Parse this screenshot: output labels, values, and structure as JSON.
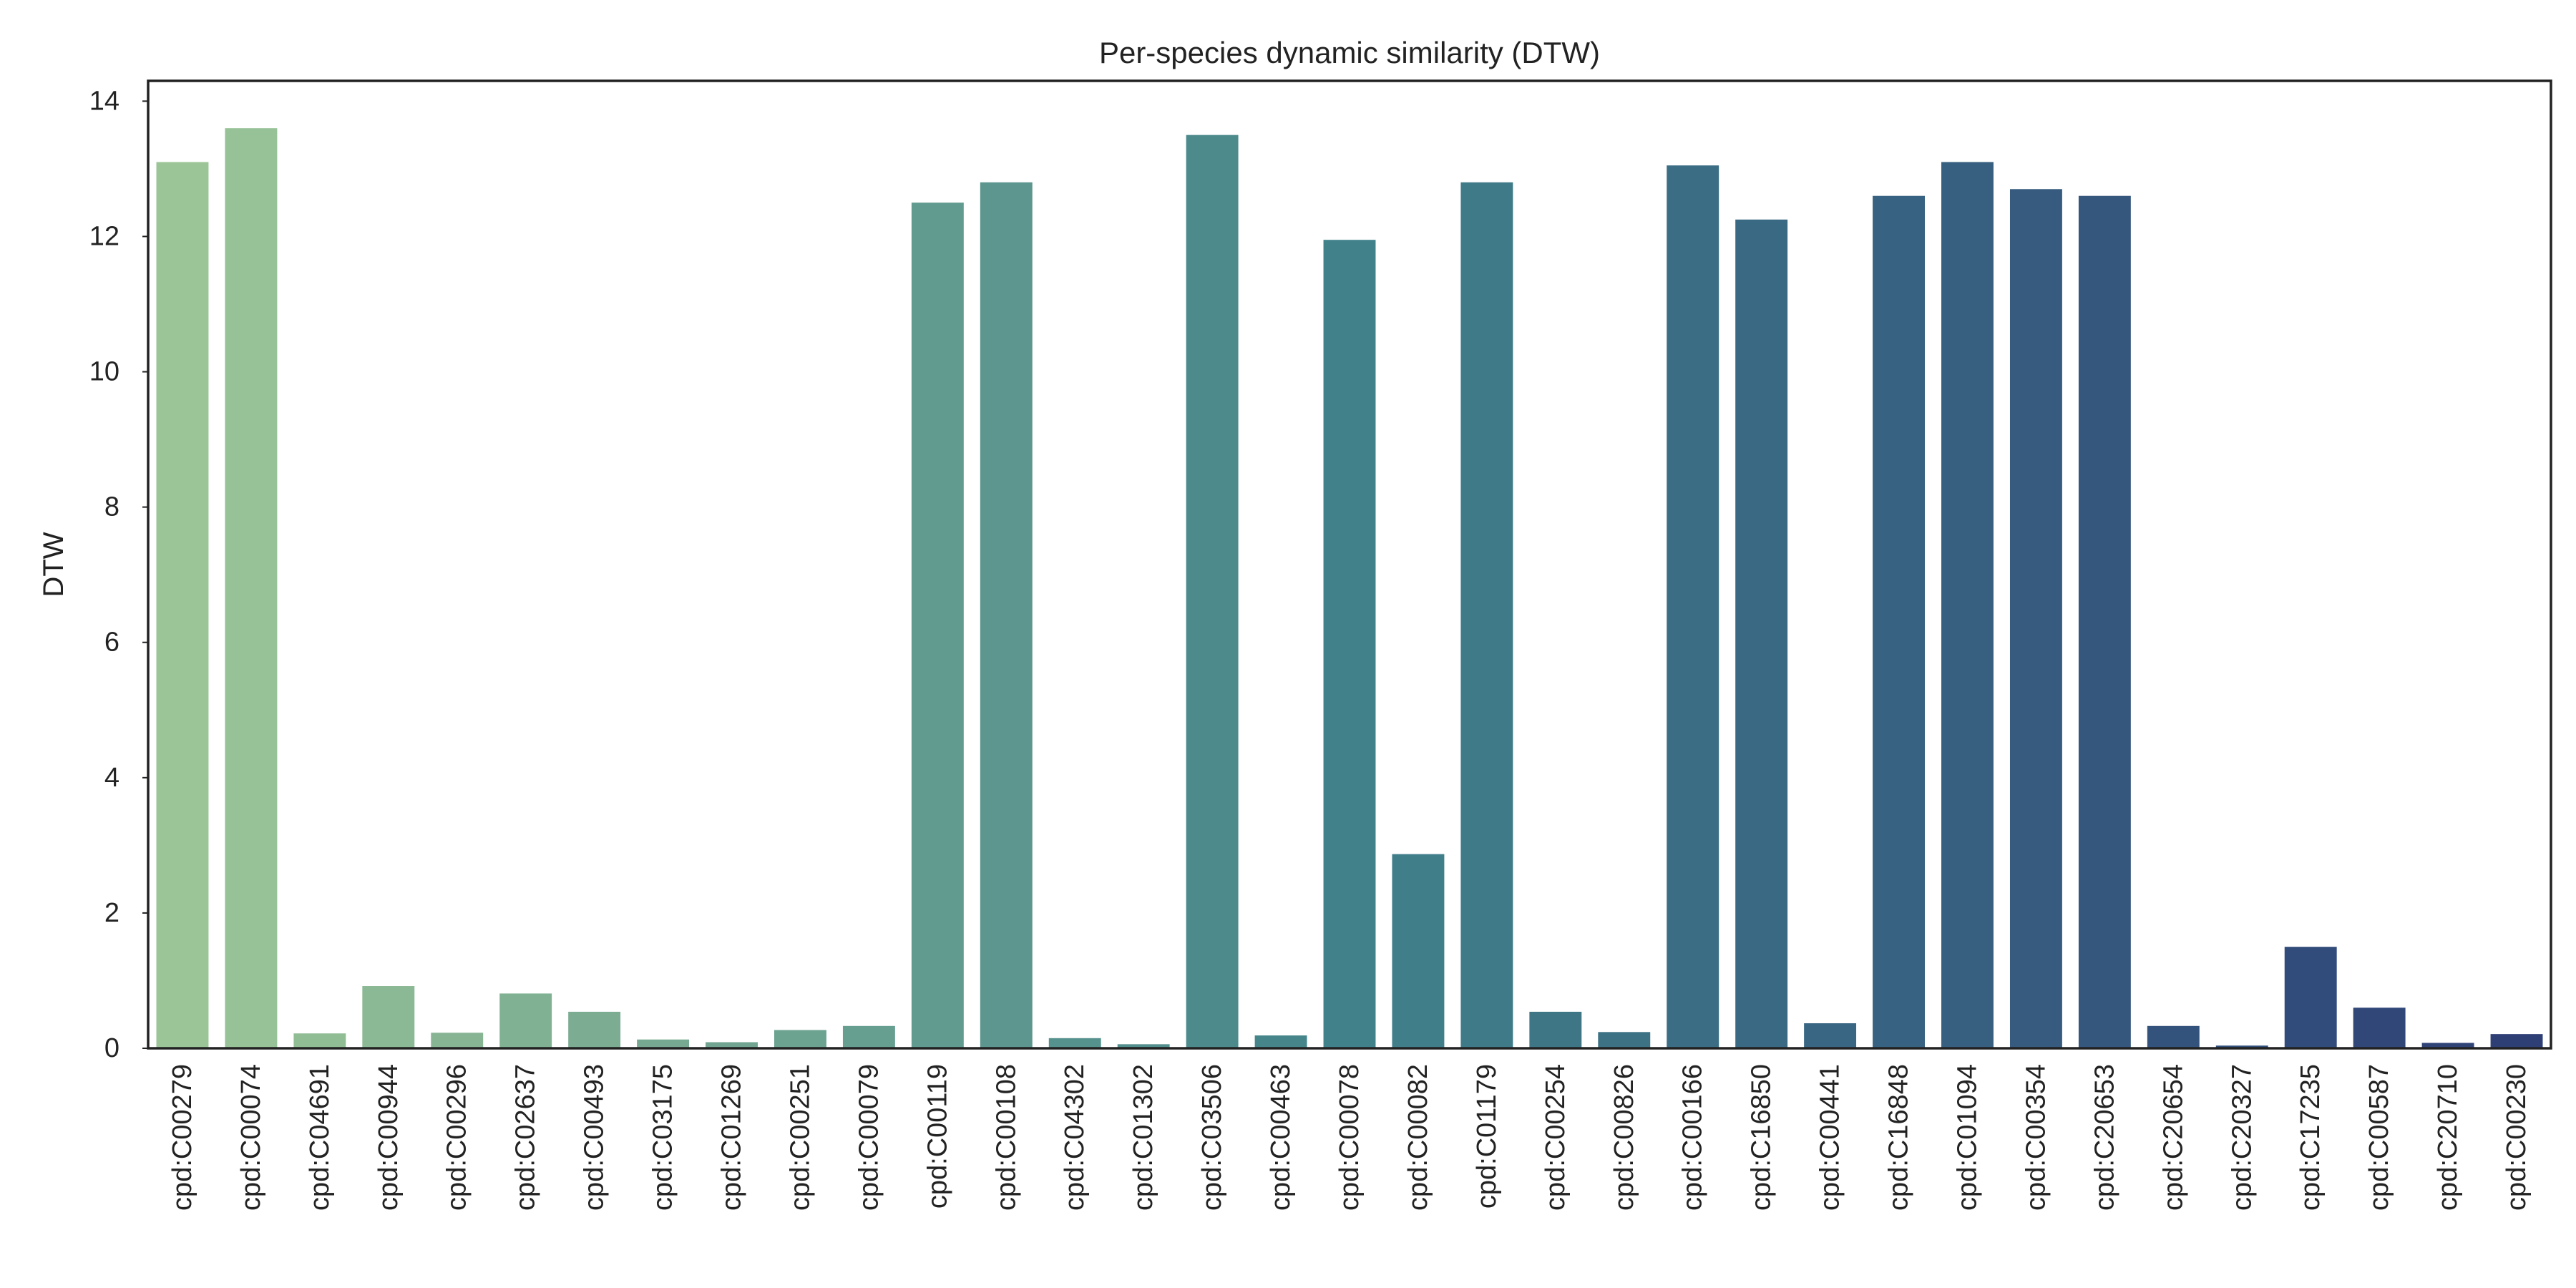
{
  "chart_data": {
    "type": "bar",
    "title": "Per-species dynamic similarity (DTW)",
    "xlabel": "",
    "ylabel": "DTW",
    "ylim": [
      0,
      14.3
    ],
    "yticks": [
      "0",
      "2",
      "4",
      "6",
      "8",
      "10",
      "12",
      "14"
    ],
    "grid": false,
    "palette": "crest (green to dark blue gradient)",
    "colors": {
      "start": "#9cc597",
      "mid": "#41828a",
      "end": "#2e3f76"
    },
    "categories": [
      "cpd:C00279",
      "cpd:C00074",
      "cpd:C04691",
      "cpd:C00944",
      "cpd:C00296",
      "cpd:C02637",
      "cpd:C00493",
      "cpd:C03175",
      "cpd:C01269",
      "cpd:C00251",
      "cpd:C00079",
      "cpd:C00119",
      "cpd:C00108",
      "cpd:C04302",
      "cpd:C01302",
      "cpd:C03506",
      "cpd:C00463",
      "cpd:C00078",
      "cpd:C00082",
      "cpd:C01179",
      "cpd:C00254",
      "cpd:C00826",
      "cpd:C00166",
      "cpd:C16850",
      "cpd:C00441",
      "cpd:C16848",
      "cpd:C01094",
      "cpd:C00354",
      "cpd:C20653",
      "cpd:C20654",
      "cpd:C20327",
      "cpd:C17235",
      "cpd:C00587",
      "cpd:C20710",
      "cpd:C00230"
    ],
    "values": [
      13.1,
      13.6,
      0.22,
      0.92,
      0.23,
      0.81,
      0.54,
      0.13,
      0.09,
      0.27,
      0.33,
      12.5,
      12.8,
      0.15,
      0.06,
      13.5,
      0.19,
      11.95,
      2.87,
      12.8,
      0.54,
      0.24,
      13.05,
      12.25,
      0.37,
      12.6,
      13.1,
      12.7,
      12.6,
      0.33,
      0.04,
      1.5,
      0.6,
      0.08,
      0.21
    ]
  }
}
